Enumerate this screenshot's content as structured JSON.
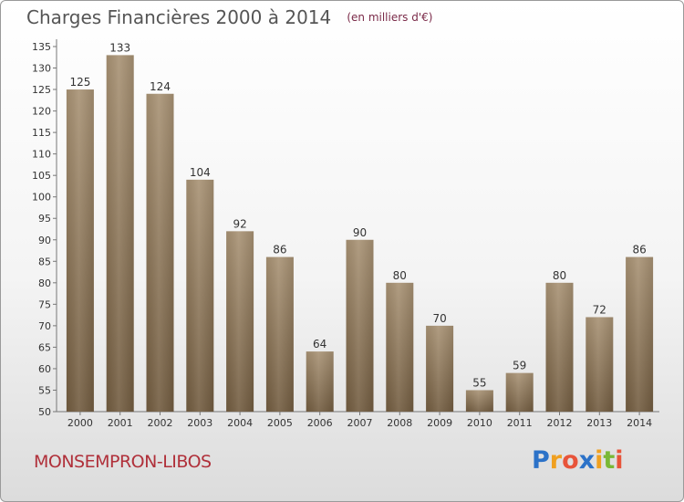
{
  "chart_data": {
    "type": "bar",
    "title": "Charges Financières 2000 à 2014",
    "subtitle": "(en milliers d'€)",
    "categories": [
      "2000",
      "2001",
      "2002",
      "2003",
      "2004",
      "2005",
      "2006",
      "2007",
      "2008",
      "2009",
      "2010",
      "2011",
      "2012",
      "2013",
      "2014"
    ],
    "values": [
      125,
      133,
      124,
      104,
      92,
      86,
      64,
      90,
      80,
      70,
      55,
      59,
      80,
      72,
      86
    ],
    "ylim": [
      50,
      135
    ],
    "yticks": [
      50,
      55,
      60,
      65,
      70,
      75,
      80,
      85,
      90,
      95,
      100,
      105,
      110,
      115,
      120,
      125,
      130,
      135
    ],
    "grid": false,
    "bar_color": "#8a7356",
    "legend": "none"
  },
  "commune": "MONSEMPRON-LIBOS",
  "brand": {
    "letters": [
      "P",
      "r",
      "o",
      "x",
      "i",
      "t",
      "i"
    ],
    "colors": [
      "#2c72c8",
      "#f0a020",
      "#e8543a",
      "#2c72c8",
      "#f0a020",
      "#7ab836",
      "#e8543a"
    ]
  }
}
